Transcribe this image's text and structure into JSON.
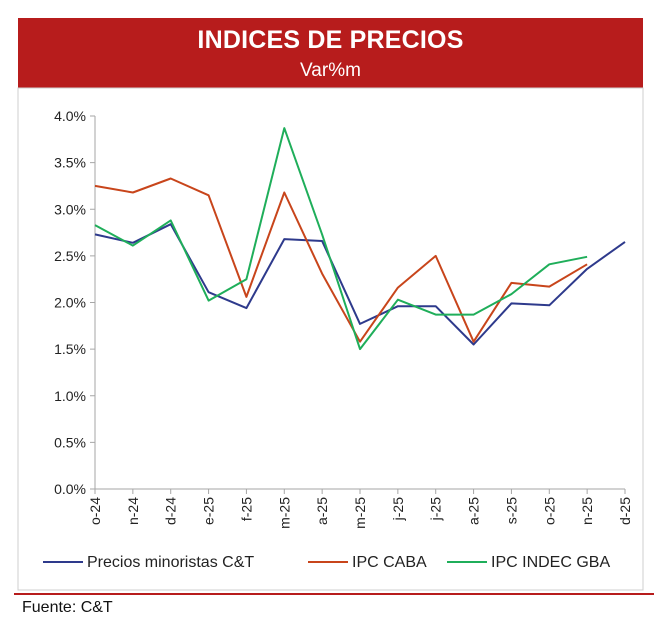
{
  "header": {
    "title": "INDICES DE PRECIOS",
    "subtitle": "Var%m"
  },
  "footer": {
    "source": "Fuente: C&T"
  },
  "colors": {
    "header_bg": "#b71c1c",
    "series_ct": "#2e3a8c",
    "series_caba": "#c8451b",
    "series_indec": "#1fae5a"
  },
  "chart_data": {
    "type": "line",
    "categories": [
      "o-24",
      "n-24",
      "d-24",
      "e-25",
      "f-25",
      "m-25",
      "a-25",
      "m-25",
      "j-25",
      "j-25",
      "a-25",
      "s-25",
      "o-25",
      "n-25",
      "d-25"
    ],
    "y_ticks": [
      "0.0%",
      "0.5%",
      "1.0%",
      "1.5%",
      "2.0%",
      "2.5%",
      "3.0%",
      "3.5%",
      "4.0%"
    ],
    "ylim": [
      0,
      4
    ],
    "grid": "none",
    "legend_position": "bottom",
    "series": [
      {
        "name": "Precios minoristas C&T",
        "color": "#2e3a8c",
        "values": [
          2.73,
          2.64,
          2.84,
          2.11,
          1.94,
          2.68,
          2.66,
          1.77,
          1.96,
          1.96,
          1.55,
          1.99,
          1.97,
          2.36,
          2.65
        ]
      },
      {
        "name": "IPC CABA",
        "color": "#c8451b",
        "values": [
          3.25,
          3.18,
          3.33,
          3.15,
          2.06,
          3.18,
          2.31,
          1.58,
          2.16,
          2.5,
          1.58,
          2.21,
          2.17,
          2.41,
          null
        ]
      },
      {
        "name": "IPC INDEC GBA",
        "color": "#1fae5a",
        "values": [
          2.83,
          2.61,
          2.88,
          2.02,
          2.25,
          3.87,
          2.73,
          1.5,
          2.03,
          1.87,
          1.87,
          2.09,
          2.41,
          2.49,
          null
        ]
      }
    ]
  }
}
